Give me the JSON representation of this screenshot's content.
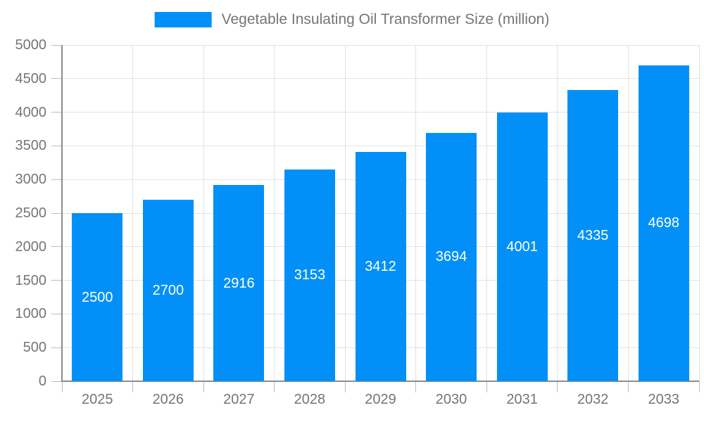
{
  "legend": {
    "label": "Vegetable Insulating Oil Transformer Size (million)"
  },
  "chart_data": {
    "type": "bar",
    "title": "Vegetable Insulating Oil Transformer Size (million)",
    "categories": [
      "2025",
      "2026",
      "2027",
      "2028",
      "2029",
      "2030",
      "2031",
      "2032",
      "2033"
    ],
    "values": [
      2500,
      2700,
      2916,
      3153,
      3412,
      3694,
      4001,
      4335,
      4698
    ],
    "xlabel": "",
    "ylabel": "",
    "ylim": [
      0,
      5000
    ],
    "yticks": [
      0,
      500,
      1000,
      1500,
      2000,
      2500,
      3000,
      3500,
      4000,
      4500,
      5000
    ],
    "grid": true,
    "legend_position": "top-center",
    "value_labels": "inside-center",
    "colors": {
      "bar": "#0290F8",
      "value_label": "#FFFFFF",
      "axis_text": "#757575",
      "grid_line": "#E3E3E3",
      "axis_line": "#8C8C8C",
      "tick": "#BDBDBD",
      "background": "#FFFFFF"
    }
  }
}
